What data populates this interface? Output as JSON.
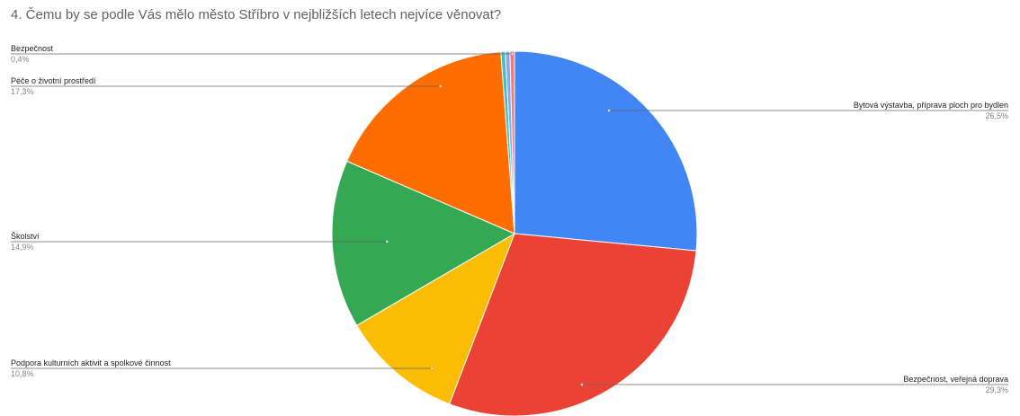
{
  "chart_data": {
    "type": "pie",
    "title": "4.  Čemu by se podle Vás mělo město Stříbro v nejbližších letech nejvíce věnovat?",
    "slices": [
      {
        "label": "Bytová výstavba, příprava ploch pro bydlen",
        "value_label": "26,5%",
        "value": 26.5,
        "color": "#4285f4"
      },
      {
        "label": "Bezpečnost, veřejná doprava",
        "value_label": "29,3%",
        "value": 29.3,
        "color": "#ea4335"
      },
      {
        "label": "Podpora kulturních aktivit a spolkové činnost",
        "value_label": "10,8%",
        "value": 10.8,
        "color": "#fbbc04"
      },
      {
        "label": "Školství",
        "value_label": "14,9%",
        "value": 14.9,
        "color": "#34a853"
      },
      {
        "label": "Péče o životní prostředí",
        "value_label": "17,3%",
        "value": 17.3,
        "color": "#ff6d01"
      },
      {
        "label": "",
        "value_label": "",
        "value": 0.4,
        "color": "#46bdc6"
      },
      {
        "label": "",
        "value_label": "",
        "value": 0.4,
        "color": "#7baaf7"
      },
      {
        "label": "Bezpečnost",
        "value_label": "0,4%",
        "value": 0.4,
        "color": "#f07b72"
      }
    ]
  }
}
